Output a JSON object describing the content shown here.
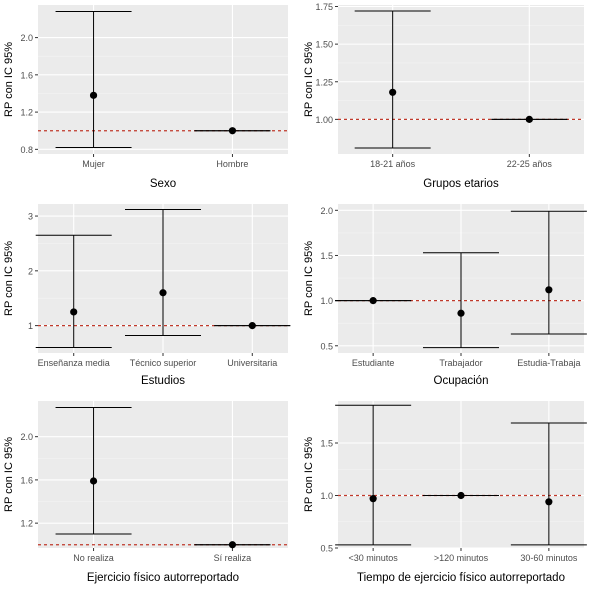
{
  "chart_data": [
    {
      "type": "errorbar",
      "ylabel": "RP con IC 95%",
      "xlabel": "Sexo",
      "categories": [
        "Mujer",
        "Hombre"
      ],
      "values": [
        1.38,
        1.0
      ],
      "ci_lower": [
        0.82,
        1.0
      ],
      "ci_upper": [
        2.28,
        1.0
      ],
      "yticks": [
        0.8,
        1.2,
        1.6,
        2.0
      ],
      "ytick_labels": [
        "0.8",
        "1.2",
        "1.6",
        "2.0"
      ],
      "ylim": [
        0.75,
        2.35
      ],
      "reference_line": 1.0
    },
    {
      "type": "errorbar",
      "ylabel": "RP con IC 95%",
      "xlabel": "Grupos etarios",
      "categories": [
        "18-21 años",
        "22-25 años"
      ],
      "values": [
        1.18,
        1.0
      ],
      "ci_lower": [
        0.81,
        1.0
      ],
      "ci_upper": [
        1.72,
        1.0
      ],
      "yticks": [
        1.0,
        1.25,
        1.5,
        1.75
      ],
      "ytick_labels": [
        "1.00",
        "1.25",
        "1.50",
        "1.75"
      ],
      "ylim": [
        0.77,
        1.76
      ],
      "reference_line": 1.0
    },
    {
      "type": "errorbar",
      "ylabel": "RP con IC 95%",
      "xlabel": "Estudios",
      "categories": [
        "Enseñanza media",
        "Técnico superior",
        "Universitaria"
      ],
      "values": [
        1.25,
        1.6,
        1.0
      ],
      "ci_lower": [
        0.6,
        0.82,
        1.0
      ],
      "ci_upper": [
        2.65,
        3.12,
        1.0
      ],
      "yticks": [
        1,
        2,
        3
      ],
      "ytick_labels": [
        "1",
        "2",
        "3"
      ],
      "ylim": [
        0.5,
        3.22
      ],
      "reference_line": 1.0
    },
    {
      "type": "errorbar",
      "ylabel": "RP con IC 95%",
      "xlabel": "Ocupación",
      "categories": [
        "Estudiante",
        "Trabajador",
        "Estudia-Trabaja"
      ],
      "values": [
        1.0,
        0.86,
        1.12
      ],
      "ci_lower": [
        1.0,
        0.48,
        0.63
      ],
      "ci_upper": [
        1.0,
        1.53,
        1.99
      ],
      "yticks": [
        0.5,
        1.0,
        1.5,
        2.0
      ],
      "ytick_labels": [
        "0.5",
        "1.0",
        "1.5",
        "2.0"
      ],
      "ylim": [
        0.42,
        2.07
      ],
      "reference_line": 1.0
    },
    {
      "type": "errorbar",
      "ylabel": "RP con IC 95%",
      "xlabel": "Ejercicio físico autorreportado",
      "categories": [
        "No realiza",
        "Sí realiza"
      ],
      "values": [
        1.59,
        1.0
      ],
      "ci_lower": [
        1.1,
        1.0
      ],
      "ci_upper": [
        2.27,
        1.0
      ],
      "yticks": [
        1.2,
        1.6,
        2.0
      ],
      "ytick_labels": [
        "1.2",
        "1.6",
        "2.0"
      ],
      "ylim": [
        0.97,
        2.33
      ],
      "reference_line": 1.0
    },
    {
      "type": "errorbar",
      "ylabel": "RP con IC 95%",
      "xlabel": "Tiempo de ejercicio físico autorreportado",
      "categories": [
        "<30 minutos",
        ">120 minutos",
        "30-60 minutos"
      ],
      "values": [
        0.97,
        1.0,
        0.94
      ],
      "ci_lower": [
        0.53,
        1.0,
        0.53
      ],
      "ci_upper": [
        1.86,
        1.0,
        1.69
      ],
      "yticks": [
        0.5,
        1.0,
        1.5
      ],
      "ytick_labels": [
        "0.5",
        "1.0",
        "1.5"
      ],
      "ylim": [
        0.5,
        1.9
      ],
      "reference_line": 1.0
    }
  ],
  "colors": {
    "panel_background": "#ebebeb",
    "grid_major": "#ffffff",
    "grid_minor": "#f4f4f4",
    "reference_line": "#c0392b",
    "point": "#000000",
    "errorbar": "#000000",
    "axis_text": "#4d4d4d",
    "axis_title": "#000000"
  }
}
